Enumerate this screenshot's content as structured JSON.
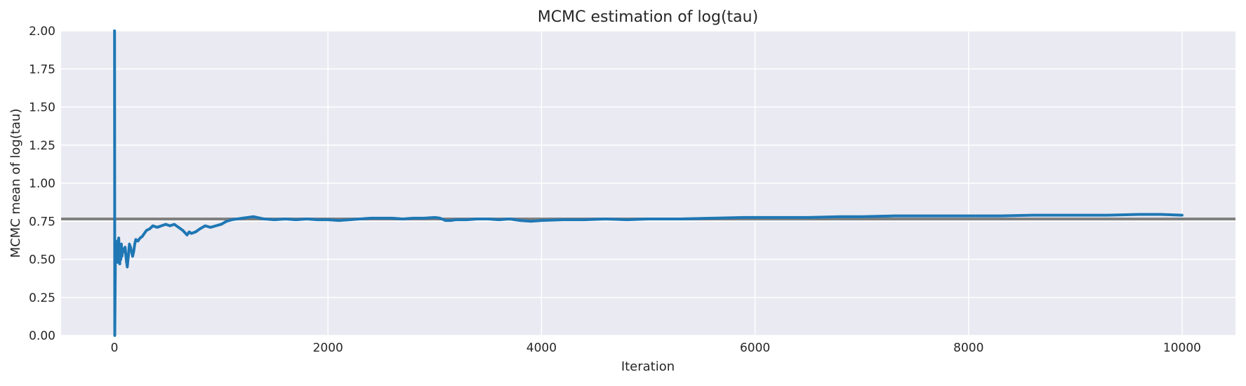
{
  "chart_data": {
    "type": "line",
    "title": "MCMC estimation of log(tau)",
    "xlabel": "Iteration",
    "ylabel": "MCMC mean of log(tau)",
    "xlim": [
      -500,
      10500
    ],
    "ylim": [
      0,
      2.0
    ],
    "xticks": [
      0,
      2000,
      4000,
      6000,
      8000,
      10000
    ],
    "yticks": [
      "0.00",
      "0.25",
      "0.50",
      "0.75",
      "1.00",
      "1.25",
      "1.50",
      "1.75",
      "2.00"
    ],
    "grid": true,
    "colors": {
      "series": "#1f77b4",
      "reference": "#808080",
      "background": "#eaeaf2",
      "grid": "#ffffff"
    },
    "reference_line": {
      "y": 0.765
    },
    "series": [
      {
        "x": [
          0,
          1,
          3,
          5,
          8,
          10,
          13,
          16,
          20,
          25,
          30,
          35,
          40,
          45,
          50,
          55,
          60,
          65,
          70,
          80,
          90,
          100,
          110,
          120,
          130,
          140,
          150,
          160,
          170,
          180,
          190,
          200,
          220,
          240,
          260,
          280,
          300,
          330,
          360,
          400,
          440,
          480,
          520,
          560,
          600,
          640,
          680,
          700,
          720,
          760,
          800,
          850,
          900,
          950,
          1000,
          1050,
          1100,
          1150,
          1200,
          1250,
          1300,
          1400,
          1500,
          1600,
          1700,
          1800,
          1900,
          2000,
          2100,
          2200,
          2300,
          2400,
          2500,
          2600,
          2700,
          2800,
          2900,
          3000,
          3050,
          3100,
          3150,
          3200,
          3300,
          3400,
          3500,
          3600,
          3700,
          3800,
          3900,
          4000,
          4200,
          4400,
          4600,
          4800,
          5000,
          5300,
          5600,
          5900,
          6000,
          6200,
          6500,
          6800,
          7000,
          7300,
          7500,
          7800,
          8000,
          8300,
          8600,
          8800,
          9000,
          9300,
          9600,
          9800,
          10000
        ],
        "y": [
          2.0,
          2.0,
          0.0,
          0.2,
          0.45,
          0.62,
          0.5,
          0.58,
          0.52,
          0.6,
          0.48,
          0.62,
          0.64,
          0.55,
          0.47,
          0.56,
          0.5,
          0.6,
          0.52,
          0.57,
          0.55,
          0.58,
          0.5,
          0.45,
          0.52,
          0.6,
          0.58,
          0.55,
          0.52,
          0.55,
          0.6,
          0.63,
          0.62,
          0.64,
          0.65,
          0.67,
          0.69,
          0.7,
          0.72,
          0.71,
          0.72,
          0.73,
          0.72,
          0.73,
          0.71,
          0.69,
          0.66,
          0.68,
          0.67,
          0.68,
          0.7,
          0.72,
          0.71,
          0.72,
          0.73,
          0.75,
          0.76,
          0.765,
          0.77,
          0.775,
          0.78,
          0.765,
          0.76,
          0.765,
          0.76,
          0.765,
          0.76,
          0.76,
          0.755,
          0.76,
          0.765,
          0.77,
          0.77,
          0.77,
          0.765,
          0.77,
          0.77,
          0.775,
          0.77,
          0.755,
          0.755,
          0.76,
          0.76,
          0.765,
          0.765,
          0.76,
          0.765,
          0.755,
          0.75,
          0.755,
          0.76,
          0.76,
          0.765,
          0.76,
          0.765,
          0.765,
          0.77,
          0.775,
          0.775,
          0.775,
          0.775,
          0.78,
          0.78,
          0.785,
          0.785,
          0.785,
          0.785,
          0.785,
          0.79,
          0.79,
          0.79,
          0.79,
          0.795,
          0.795,
          0.79
        ]
      }
    ]
  }
}
